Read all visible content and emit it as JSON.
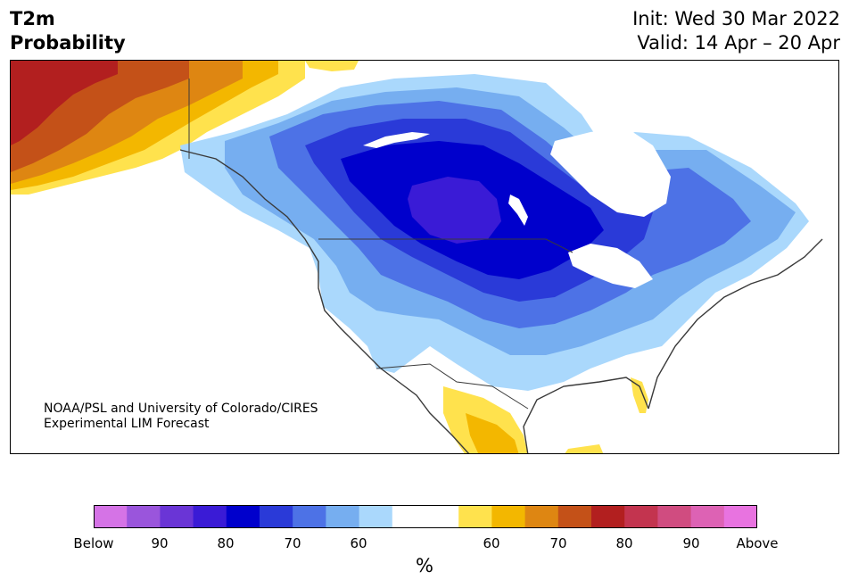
{
  "title": {
    "line1": "T2m",
    "line2": "Probability"
  },
  "subtitle": {
    "init": "Init: Wed 30 Mar 2022",
    "valid": "Valid: 14 Apr – 20 Apr"
  },
  "credit": {
    "line1": "NOAA/PSL and University of Colorado/CIRES",
    "line2": "Experimental LIM Forecast"
  },
  "colorbar": {
    "unit": "%",
    "colors": [
      "#d573e6",
      "#9a55dc",
      "#6a35d6",
      "#3a1bd6",
      "#0000cc",
      "#2a3ad8",
      "#4d72e6",
      "#76aef0",
      "#aad8fc",
      "#ffffff",
      "#ffffff",
      "#ffe24d",
      "#f3b700",
      "#de8612",
      "#c45118",
      "#b21f1f",
      "#c3344f",
      "#d04c80",
      "#dd62b4",
      "#e873e0"
    ],
    "labels": [
      "Below",
      "90",
      "80",
      "70",
      "60",
      "60",
      "70",
      "80",
      "90",
      "Above"
    ]
  },
  "map": {
    "colors": {
      "below_60": "#aad8fc",
      "below_70": "#76aef0",
      "below_80": "#4d72e6",
      "below_90": "#2a3ad8",
      "below_95": "#0000cc",
      "below_99": "#3a1bd6",
      "above_60": "#ffe24d",
      "above_70": "#f3b700",
      "above_80": "#de8612",
      "above_90": "#c45118",
      "above_95": "#b21f1f"
    }
  }
}
